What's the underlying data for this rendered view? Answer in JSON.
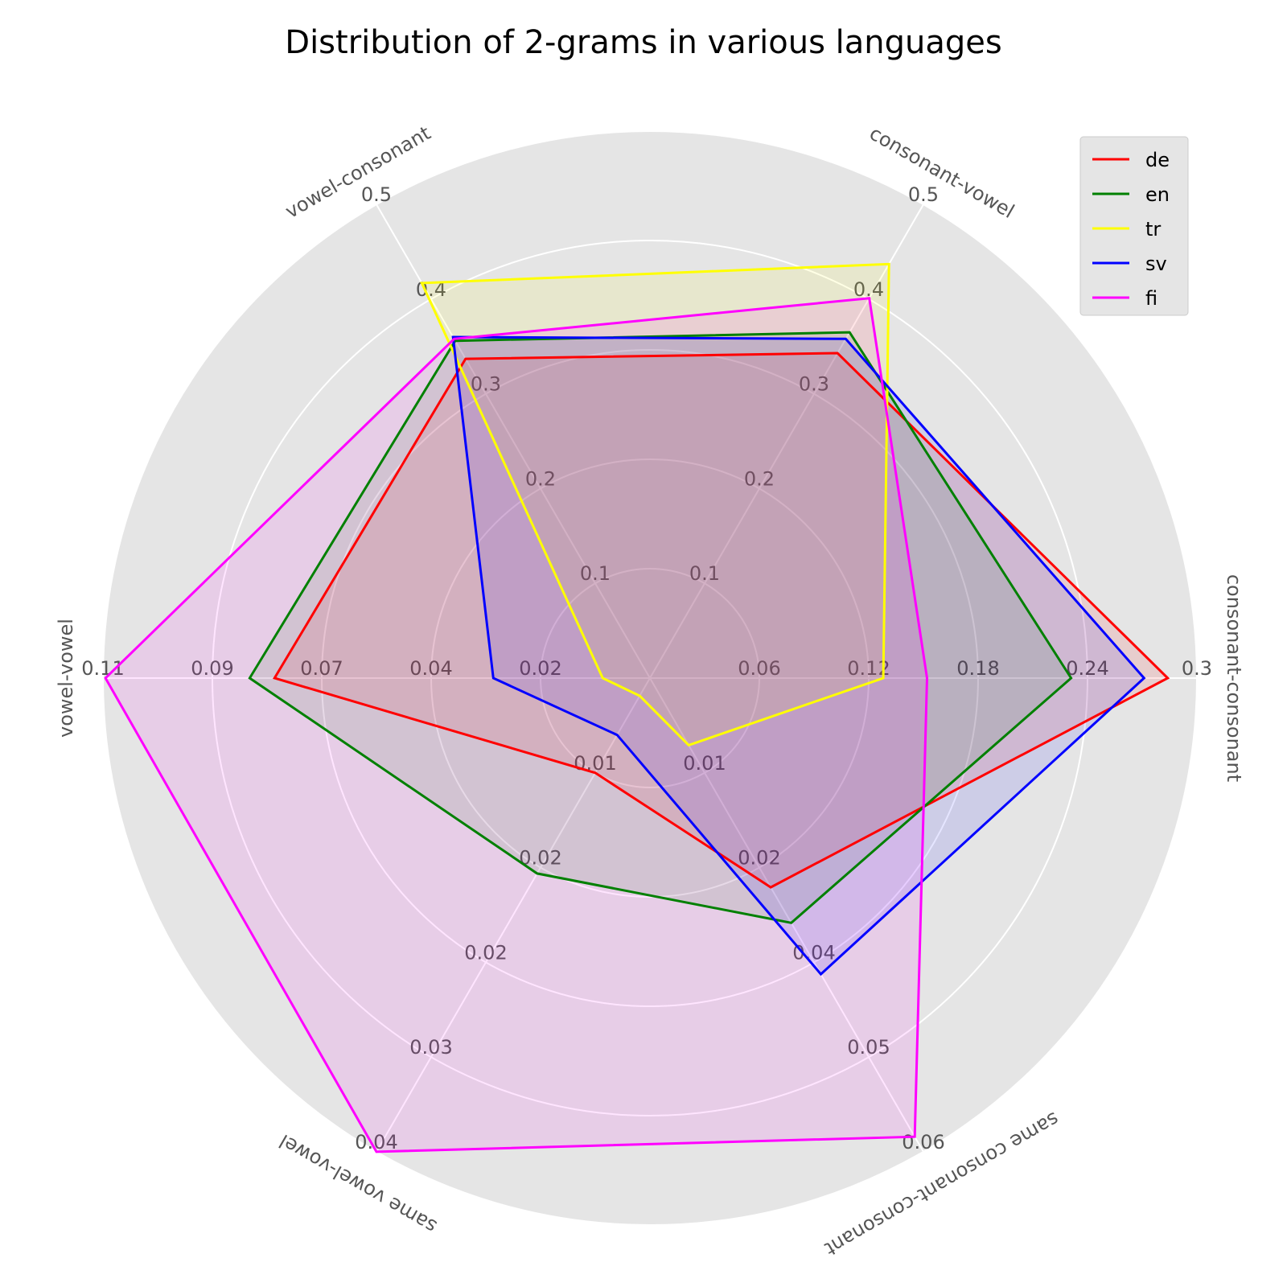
{
  "chart_data": {
    "type": "radar",
    "title": "Distribution of 2-grams in various languages",
    "axes": [
      {
        "label": "consonant-consonant",
        "max": 0.3,
        "ticks": [
          "0.06",
          "0.12",
          "0.18",
          "0.24",
          "0.3"
        ]
      },
      {
        "label": "consonant-vowel",
        "max": 0.5,
        "ticks": [
          "0.1",
          "0.2",
          "0.3",
          "0.4",
          "0.5"
        ]
      },
      {
        "label": "vowel-consonant",
        "max": 0.5,
        "ticks": [
          "0.1",
          "0.2",
          "0.3",
          "0.4",
          "0.5"
        ]
      },
      {
        "label": "vowel-vowel",
        "max": 0.11,
        "ticks": [
          "0.02",
          "0.04",
          "0.07",
          "0.09",
          "0.11"
        ]
      },
      {
        "label": "same vowel-vowel",
        "max": 0.04,
        "ticks": [
          "0.01",
          "0.02",
          "0.02",
          "0.03",
          "0.04"
        ]
      },
      {
        "label": "same consonant-consonant",
        "max": 0.06,
        "ticks": [
          "0.01",
          "0.02",
          "0.04",
          "0.05",
          "0.06"
        ]
      }
    ],
    "series": [
      {
        "name": "de",
        "color": "#ff0000",
        "values": [
          0.284,
          0.343,
          0.337,
          0.0755,
          0.008,
          0.0265
        ]
      },
      {
        "name": "en",
        "color": "#008000",
        "values": [
          0.231,
          0.365,
          0.356,
          0.0805,
          0.0165,
          0.031
        ]
      },
      {
        "name": "tr",
        "color": "#ffff00",
        "values": [
          0.128,
          0.437,
          0.417,
          0.0095,
          0.0015,
          0.0085
        ]
      },
      {
        "name": "sv",
        "color": "#0000ff",
        "values": [
          0.271,
          0.358,
          0.36,
          0.0315,
          0.0048,
          0.0375
        ]
      },
      {
        "name": "fi",
        "color": "#ff00ff",
        "values": [
          0.152,
          0.401,
          0.358,
          0.1095,
          0.04,
          0.0581
        ]
      }
    ],
    "grid": true,
    "legend": "top-right"
  }
}
